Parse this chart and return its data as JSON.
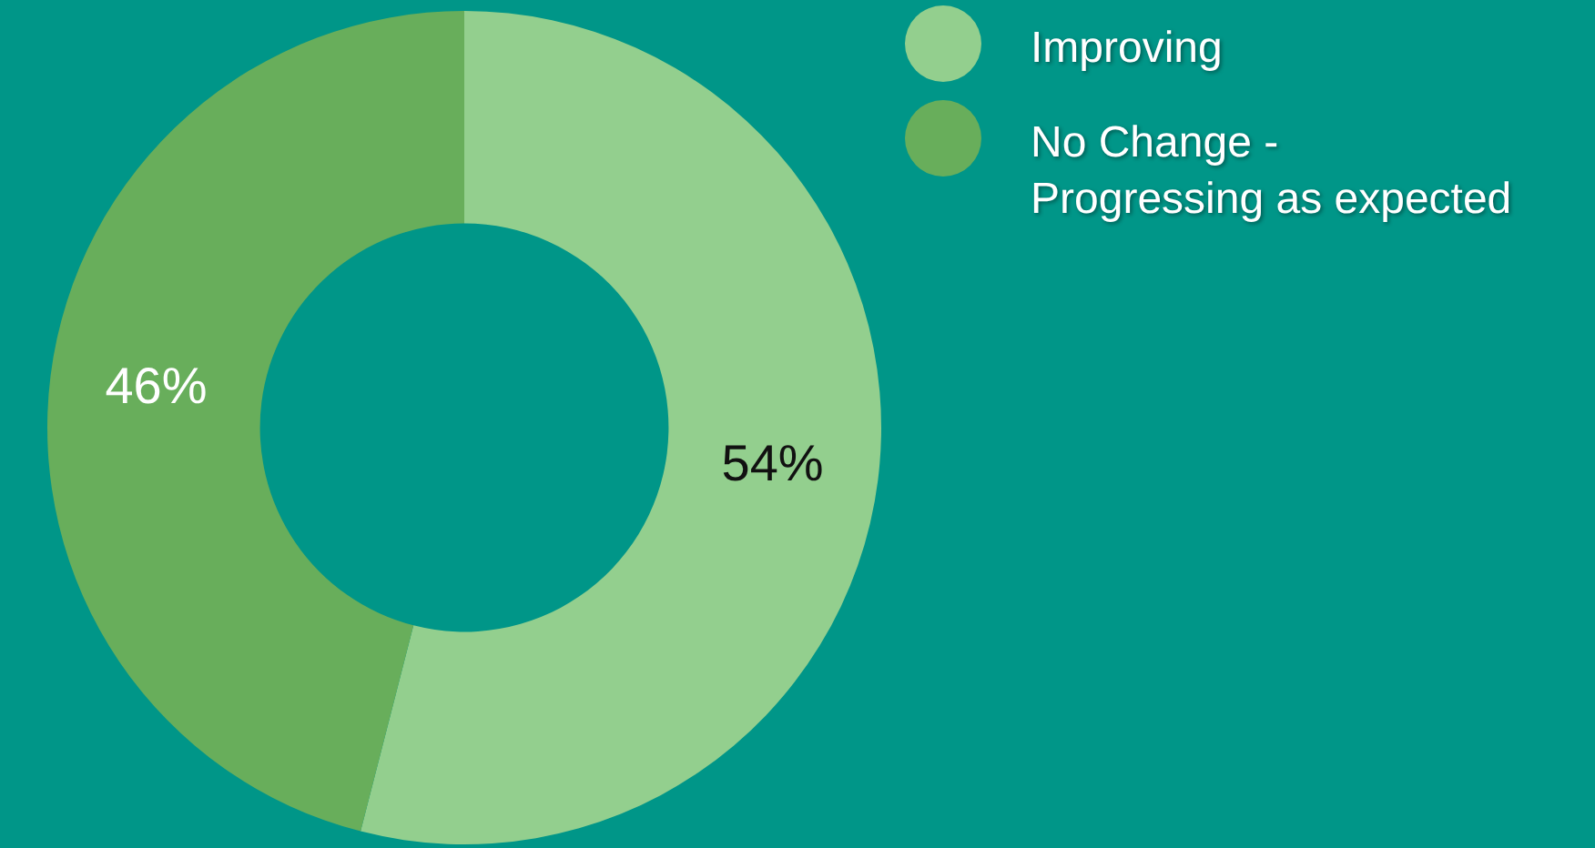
{
  "chart_data": {
    "type": "donut",
    "categories": [
      "Improving",
      "No Change -\nProgressing as expected"
    ],
    "values": [
      54,
      46
    ],
    "value_labels": [
      "54%",
      "46%"
    ],
    "colors": [
      "#93cf8e",
      "#68ae5b"
    ],
    "legend": "top right"
  }
}
